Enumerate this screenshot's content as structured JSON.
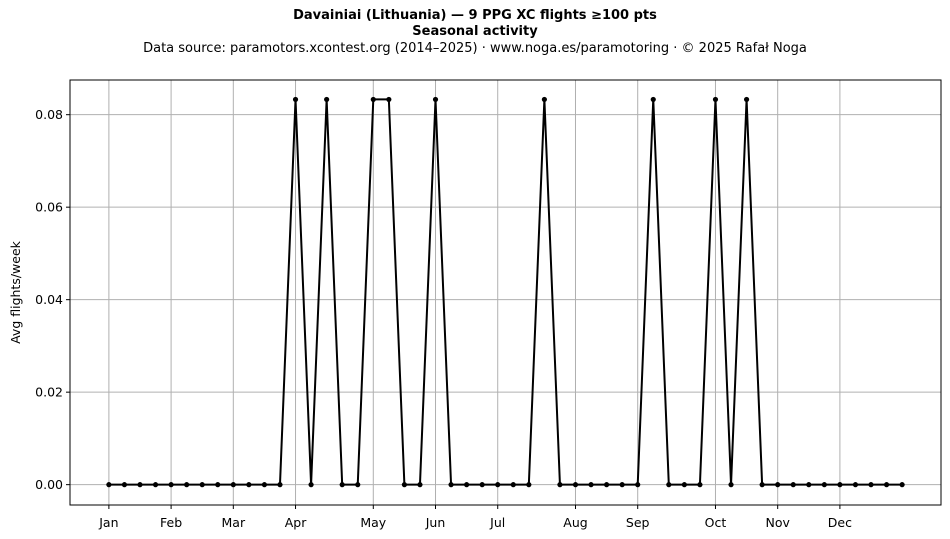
{
  "chart_data": {
    "type": "line",
    "title": "Davainiai (Lithuania)  —  9 PPG XC flights ≥100 pts",
    "subtitle": "Seasonal activity",
    "source_line": "Data source: paramotors.xcontest.org (2014–2025)  ·  www.noga.es/paramotoring  ·  © 2025 Rafał Noga",
    "xlabel": "",
    "ylabel": "Avg flights/week",
    "ylim": [
      -0.0044,
      0.0875
    ],
    "xlim": [
      -2.5,
      53.5
    ],
    "grid": true,
    "legend": "none",
    "line_color": "#000000",
    "x_tick_positions": [
      0,
      4,
      8,
      12,
      17,
      21,
      25,
      30,
      34,
      39,
      43,
      47
    ],
    "x_tick_labels": [
      "Jan",
      "Feb",
      "Mar",
      "Apr",
      "May",
      "Jun",
      "Jul",
      "Aug",
      "Sep",
      "Oct",
      "Nov",
      "Dec"
    ],
    "y_ticks": [
      0.0,
      0.02,
      0.04,
      0.06,
      0.08
    ],
    "y_tick_labels": [
      "0.00",
      "0.02",
      "0.04",
      "0.06",
      "0.08"
    ],
    "x": [
      0,
      1,
      2,
      3,
      4,
      5,
      6,
      7,
      8,
      9,
      10,
      11,
      12,
      13,
      14,
      15,
      16,
      17,
      18,
      19,
      20,
      21,
      22,
      23,
      24,
      25,
      26,
      27,
      28,
      29,
      30,
      31,
      32,
      33,
      34,
      35,
      36,
      37,
      38,
      39,
      40,
      41,
      42,
      43,
      44,
      45,
      46,
      47,
      48,
      49,
      50,
      51
    ],
    "values": [
      0,
      0,
      0,
      0,
      0,
      0,
      0,
      0,
      0,
      0,
      0,
      0,
      0.0833,
      0,
      0.0833,
      0,
      0,
      0.0833,
      0.0833,
      0,
      0,
      0.0833,
      0,
      0,
      0,
      0,
      0,
      0,
      0.0833,
      0,
      0,
      0,
      0,
      0,
      0,
      0.0833,
      0,
      0,
      0,
      0.0833,
      0,
      0.0833,
      0,
      0,
      0,
      0,
      0,
      0,
      0,
      0,
      0,
      0
    ]
  }
}
